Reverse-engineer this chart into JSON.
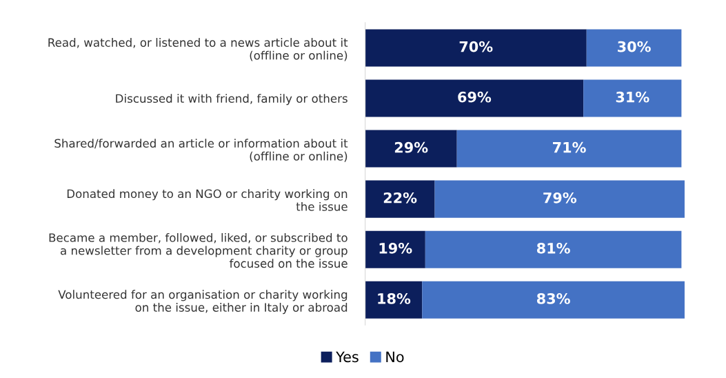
{
  "chart_data": {
    "type": "bar",
    "orientation": "horizontal",
    "stacked": true,
    "categories": [
      "Read, watched, or listened to a news article about it\n(offline or online)",
      "Discussed it with friend, family or others",
      "Shared/forwarded an article or information about it\n(offline or online)",
      "Donated money to an NGO or charity working on\nthe issue",
      "Became a member, followed, liked, or subscribed to\na newsletter from a development charity or group\nfocused on the issue",
      "Volunteered for an organisation or charity working\non the issue, either in Italy or abroad"
    ],
    "series": [
      {
        "name": "Yes",
        "color": "#0c1f5c",
        "values": [
          70,
          69,
          29,
          22,
          19,
          18
        ],
        "value_labels": [
          "70%",
          "69%",
          "29%",
          "22%",
          "19%",
          "18%"
        ]
      },
      {
        "name": "No",
        "color": "#4472c4",
        "values": [
          30,
          31,
          71,
          79,
          81,
          83
        ],
        "value_labels": [
          "30%",
          "31%",
          "71%",
          "79%",
          "81%",
          "83%"
        ]
      }
    ],
    "xlim": [
      0,
      101
    ],
    "tick_labels": "y",
    "grid": false,
    "legend": "bottom"
  }
}
